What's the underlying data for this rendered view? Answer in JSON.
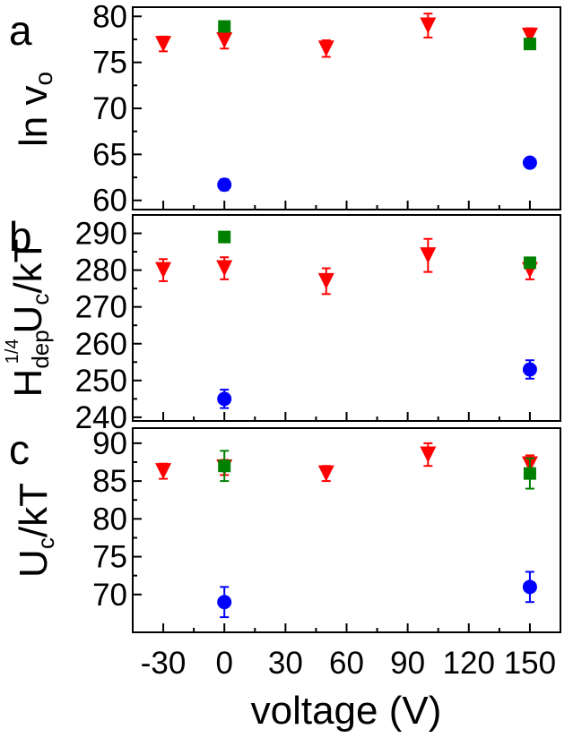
{
  "chart_data": [
    {
      "type": "scatter",
      "panel_letter": "a",
      "ylabel_main": "ln v",
      "ylabel_sub": "o",
      "xlim": [
        -45,
        165
      ],
      "ylim": [
        59,
        81
      ],
      "yticks": [
        60,
        65,
        70,
        75,
        80
      ],
      "ytick_labels": [
        "60",
        "65",
        "70",
        "75",
        "80"
      ],
      "series": [
        {
          "marker": "triangle-down",
          "color": "#ff0000",
          "points": [
            {
              "x": -30,
              "y": 77.0,
              "err": 0.8
            },
            {
              "x": 0,
              "y": 77.4,
              "err": 0.9
            },
            {
              "x": 50,
              "y": 76.5,
              "err": 0.9
            },
            {
              "x": 100,
              "y": 79.0,
              "err": 1.3
            },
            {
              "x": 150,
              "y": 77.9,
              "err": 0.8
            }
          ]
        },
        {
          "marker": "square",
          "color": "#008000",
          "points": [
            {
              "x": 0,
              "y": 78.9,
              "err": 0.2
            },
            {
              "x": 150,
              "y": 77.0,
              "err": 0.3
            }
          ]
        },
        {
          "marker": "circle",
          "color": "#0000ff",
          "points": [
            {
              "x": 0,
              "y": 61.7,
              "err": 0.6
            },
            {
              "x": 150,
              "y": 64.1,
              "err": 0.3
            }
          ]
        }
      ]
    },
    {
      "type": "scatter",
      "panel_letter": "b",
      "ylabel_H": "H",
      "ylabel_H_sup": "1/4",
      "ylabel_H_sub": "dep",
      "ylabel_U": "U",
      "ylabel_U_sub": "c",
      "ylabel_tail": "/kT",
      "xlim": [
        -45,
        165
      ],
      "ylim": [
        239,
        295
      ],
      "yticks": [
        240,
        250,
        260,
        270,
        280,
        290
      ],
      "ytick_labels": [
        "240",
        "250",
        "260",
        "270",
        "280",
        "290"
      ],
      "series": [
        {
          "marker": "triangle-down",
          "color": "#ff0000",
          "points": [
            {
              "x": -30,
              "y": 280.0,
              "err": 3.0
            },
            {
              "x": 0,
              "y": 280.5,
              "err": 3.0
            },
            {
              "x": 50,
              "y": 277.0,
              "err": 3.5
            },
            {
              "x": 100,
              "y": 284.0,
              "err": 4.5
            },
            {
              "x": 150,
              "y": 280.0,
              "err": 2.5
            }
          ]
        },
        {
          "marker": "square",
          "color": "#008000",
          "points": [
            {
              "x": 0,
              "y": 289.0,
              "err": 0.8
            },
            {
              "x": 150,
              "y": 282.0,
              "err": 1.0
            }
          ]
        },
        {
          "marker": "circle",
          "color": "#0000ff",
          "points": [
            {
              "x": 0,
              "y": 245.0,
              "err": 2.5
            },
            {
              "x": 150,
              "y": 253.0,
              "err": 2.5
            }
          ]
        }
      ]
    },
    {
      "type": "scatter",
      "panel_letter": "c",
      "ylabel_U": "U",
      "ylabel_U_sub": "c",
      "ylabel_tail": "/kT",
      "xlim": [
        -45,
        165
      ],
      "xticks": [
        -30,
        0,
        30,
        60,
        90,
        120,
        150
      ],
      "xtick_labels": [
        "-30",
        "0",
        "30",
        "60",
        "90",
        "120",
        "150"
      ],
      "xlabel": "voltage (V)",
      "ylim": [
        65,
        92
      ],
      "yticks": [
        70,
        75,
        80,
        85,
        90
      ],
      "ytick_labels": [
        "70",
        "75",
        "80",
        "85",
        "90"
      ],
      "series": [
        {
          "marker": "triangle-down",
          "color": "#ff0000",
          "points": [
            {
              "x": -30,
              "y": 86.3,
              "err": 1.0
            },
            {
              "x": 0,
              "y": 86.8,
              "err": 1.0
            },
            {
              "x": 50,
              "y": 86.0,
              "err": 1.0
            },
            {
              "x": 100,
              "y": 88.5,
              "err": 1.5
            },
            {
              "x": 150,
              "y": 87.2,
              "err": 1.2
            }
          ]
        },
        {
          "marker": "square",
          "color": "#008000",
          "points": [
            {
              "x": 0,
              "y": 87.0,
              "err": 2.0
            },
            {
              "x": 150,
              "y": 86.0,
              "err": 2.0
            }
          ]
        },
        {
          "marker": "circle",
          "color": "#0000ff",
          "points": [
            {
              "x": 0,
              "y": 69.0,
              "err": 2.0
            },
            {
              "x": 150,
              "y": 71.0,
              "err": 2.0
            }
          ]
        }
      ]
    }
  ]
}
